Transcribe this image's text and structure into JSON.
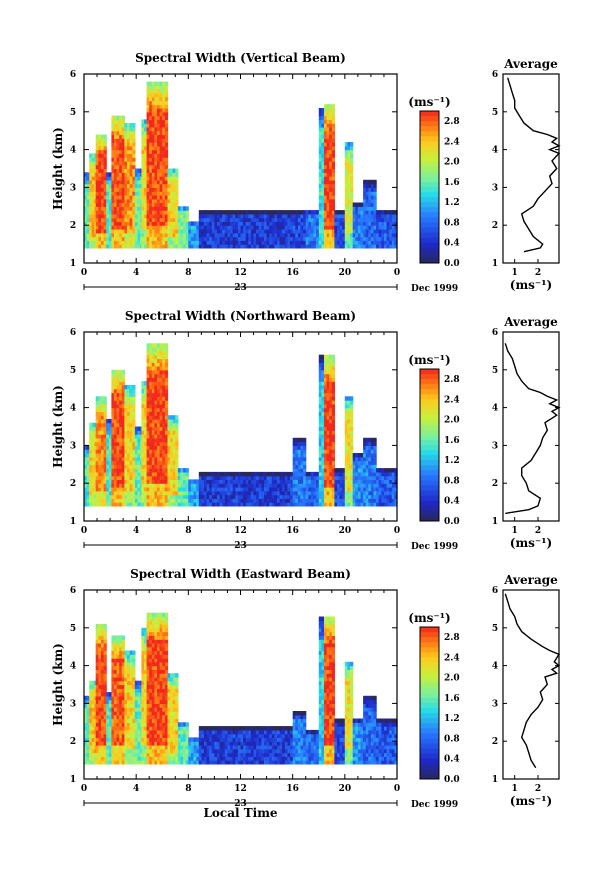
{
  "chart_data": [
    {
      "type": "heatmap",
      "title": "Spectral Width (Vertical Beam)",
      "ylabel": "Height (km)",
      "ylim": [
        1,
        6
      ],
      "yticks": [
        "1",
        "2",
        "3",
        "4",
        "5",
        "6"
      ],
      "xlim": [
        0,
        24
      ],
      "xticks": [
        "0",
        "4",
        "8",
        "12",
        "16",
        "20",
        "0"
      ],
      "day_label": "23",
      "date_label": "Dec 1999",
      "xlabel": "",
      "colorbar": {
        "unit": "(ms⁻¹)",
        "labels": [
          "2.8",
          "2.4",
          "2.0",
          "1.6",
          "1.2",
          "0.8",
          "0.4",
          "0.0"
        ],
        "range": [
          0.0,
          3.0
        ]
      },
      "columns": [
        {
          "t": [
            0.0,
            0.4
          ],
          "h": [
            1.4,
            3.4
          ],
          "v": 1.6
        },
        {
          "t": [
            0.4,
            0.9
          ],
          "h": [
            1.4,
            3.9
          ],
          "v": 2.4
        },
        {
          "t": [
            0.9,
            1.7
          ],
          "h": [
            1.4,
            4.4
          ],
          "v": 2.9
        },
        {
          "t": [
            1.7,
            2.1
          ],
          "h": [
            1.4,
            3.4
          ],
          "v": 1.5
        },
        {
          "t": [
            2.1,
            3.1
          ],
          "h": [
            1.4,
            4.9
          ],
          "v": 2.9
        },
        {
          "t": [
            3.1,
            3.9
          ],
          "h": [
            1.4,
            4.7
          ],
          "v": 2.6
        },
        {
          "t": [
            3.9,
            4.4
          ],
          "h": [
            1.4,
            3.5
          ],
          "v": 1.6
        },
        {
          "t": [
            4.4,
            4.8
          ],
          "h": [
            1.4,
            4.8
          ],
          "v": 2.3
        },
        {
          "t": [
            4.8,
            6.4
          ],
          "h": [
            1.4,
            5.8
          ],
          "v": 2.9
        },
        {
          "t": [
            6.4,
            7.2
          ],
          "h": [
            1.4,
            3.5
          ],
          "v": 2.3
        },
        {
          "t": [
            7.2,
            8.0
          ],
          "h": [
            1.4,
            2.5
          ],
          "v": 1.7
        },
        {
          "t": [
            8.0,
            8.8
          ],
          "h": [
            1.4,
            2.1
          ],
          "v": 1.1
        },
        {
          "t": [
            8.8,
            16.0
          ],
          "h": [
            1.4,
            2.4
          ],
          "v": 0.5
        },
        {
          "t": [
            16.0,
            17.0
          ],
          "h": [
            1.4,
            2.4
          ],
          "v": 0.6
        },
        {
          "t": [
            17.0,
            18.0
          ],
          "h": [
            1.4,
            2.4
          ],
          "v": 0.9
        },
        {
          "t": [
            18.0,
            18.4
          ],
          "h": [
            1.4,
            5.1
          ],
          "v": 1.4
        },
        {
          "t": [
            18.4,
            19.2
          ],
          "h": [
            1.4,
            5.2
          ],
          "v": 2.9
        },
        {
          "t": [
            19.2,
            20.0
          ],
          "h": [
            1.4,
            2.4
          ],
          "v": 0.6
        },
        {
          "t": [
            20.0,
            20.6
          ],
          "h": [
            1.4,
            4.2
          ],
          "v": 2.1
        },
        {
          "t": [
            20.6,
            21.4
          ],
          "h": [
            1.4,
            2.6
          ],
          "v": 0.9
        },
        {
          "t": [
            21.4,
            22.4
          ],
          "h": [
            1.4,
            3.2
          ],
          "v": 0.8
        },
        {
          "t": [
            22.4,
            24.0
          ],
          "h": [
            1.4,
            2.4
          ],
          "v": 0.7
        }
      ],
      "profile": {
        "title": "Average",
        "xlabel": "(ms⁻¹)",
        "xlim": [
          0.5,
          2.9
        ],
        "xticks": [
          "1",
          "2"
        ],
        "ylim": [
          1,
          6
        ],
        "yticks": [
          "1",
          "2",
          "3",
          "4",
          "5",
          "6"
        ],
        "height": [
          1.3,
          1.4,
          1.5,
          1.7,
          1.9,
          2.1,
          2.3,
          2.5,
          2.7,
          2.9,
          3.1,
          3.3,
          3.5,
          3.7,
          3.9,
          4.0,
          4.1,
          4.2,
          4.3,
          4.4,
          4.5,
          4.7,
          4.9,
          5.1,
          5.3,
          5.5,
          5.7,
          5.9
        ],
        "value": [
          1.4,
          2.1,
          2.2,
          1.8,
          1.6,
          1.4,
          1.3,
          1.8,
          2.0,
          2.3,
          2.6,
          2.5,
          2.8,
          2.6,
          2.9,
          2.5,
          2.9,
          2.6,
          2.8,
          2.4,
          1.8,
          1.4,
          1.2,
          1.0,
          1.0,
          0.9,
          0.8,
          0.7
        ]
      }
    },
    {
      "type": "heatmap",
      "title": "Spectral Width (Northward Beam)",
      "ylabel": "Height (km)",
      "ylim": [
        1,
        6
      ],
      "yticks": [
        "1",
        "2",
        "3",
        "4",
        "5",
        "6"
      ],
      "xlim": [
        0,
        24
      ],
      "xticks": [
        "0",
        "4",
        "8",
        "12",
        "16",
        "20",
        "0"
      ],
      "day_label": "23",
      "date_label": "Dec 1999",
      "xlabel": "",
      "colorbar": {
        "unit": "(ms⁻¹)",
        "labels": [
          "2.8",
          "2.4",
          "2.0",
          "1.6",
          "1.2",
          "0.8",
          "0.4",
          "0.0"
        ],
        "range": [
          0.0,
          3.0
        ]
      },
      "columns": [
        {
          "t": [
            0.0,
            0.4
          ],
          "h": [
            1.4,
            3.0
          ],
          "v": 1.5
        },
        {
          "t": [
            0.4,
            0.9
          ],
          "h": [
            1.4,
            3.6
          ],
          "v": 2.3
        },
        {
          "t": [
            0.9,
            1.7
          ],
          "h": [
            1.4,
            4.3
          ],
          "v": 2.6
        },
        {
          "t": [
            1.7,
            2.1
          ],
          "h": [
            1.4,
            3.7
          ],
          "v": 1.5
        },
        {
          "t": [
            2.1,
            3.1
          ],
          "h": [
            1.4,
            5.0
          ],
          "v": 2.9
        },
        {
          "t": [
            3.1,
            3.9
          ],
          "h": [
            1.4,
            4.6
          ],
          "v": 2.3
        },
        {
          "t": [
            3.9,
            4.4
          ],
          "h": [
            1.4,
            3.5
          ],
          "v": 1.6
        },
        {
          "t": [
            4.4,
            4.8
          ],
          "h": [
            1.4,
            4.7
          ],
          "v": 2.3
        },
        {
          "t": [
            4.8,
            6.4
          ],
          "h": [
            1.4,
            5.7
          ],
          "v": 2.9
        },
        {
          "t": [
            6.4,
            7.2
          ],
          "h": [
            1.4,
            3.8
          ],
          "v": 2.3
        },
        {
          "t": [
            7.2,
            8.0
          ],
          "h": [
            1.4,
            2.4
          ],
          "v": 1.6
        },
        {
          "t": [
            8.0,
            8.8
          ],
          "h": [
            1.4,
            2.1
          ],
          "v": 1.1
        },
        {
          "t": [
            8.8,
            16.0
          ],
          "h": [
            1.4,
            2.3
          ],
          "v": 0.5
        },
        {
          "t": [
            16.0,
            17.0
          ],
          "h": [
            1.4,
            3.2
          ],
          "v": 0.9
        },
        {
          "t": [
            17.0,
            18.0
          ],
          "h": [
            1.4,
            2.3
          ],
          "v": 0.8
        },
        {
          "t": [
            18.0,
            18.4
          ],
          "h": [
            1.4,
            5.4
          ],
          "v": 1.3
        },
        {
          "t": [
            18.4,
            19.2
          ],
          "h": [
            1.4,
            5.4
          ],
          "v": 2.9
        },
        {
          "t": [
            19.2,
            20.0
          ],
          "h": [
            1.4,
            2.4
          ],
          "v": 0.6
        },
        {
          "t": [
            20.0,
            20.6
          ],
          "h": [
            1.4,
            4.3
          ],
          "v": 2.2
        },
        {
          "t": [
            20.6,
            21.4
          ],
          "h": [
            1.4,
            2.8
          ],
          "v": 1.0
        },
        {
          "t": [
            21.4,
            22.4
          ],
          "h": [
            1.4,
            3.2
          ],
          "v": 0.9
        },
        {
          "t": [
            22.4,
            24.0
          ],
          "h": [
            1.4,
            2.4
          ],
          "v": 0.7
        }
      ],
      "profile": {
        "title": "Average",
        "xlabel": "(ms⁻¹)",
        "xlim": [
          0.5,
          2.9
        ],
        "xticks": [
          "1",
          "2"
        ],
        "ylim": [
          1,
          6
        ],
        "yticks": [
          "1",
          "2",
          "3",
          "4",
          "5",
          "6"
        ],
        "height": [
          1.2,
          1.3,
          1.4,
          1.6,
          1.8,
          2.0,
          2.2,
          2.4,
          2.6,
          2.8,
          3.0,
          3.2,
          3.4,
          3.6,
          3.8,
          3.9,
          4.0,
          4.1,
          4.2,
          4.3,
          4.4,
          4.5,
          4.7,
          4.9,
          5.1,
          5.3,
          5.5,
          5.7
        ],
        "value": [
          0.6,
          1.6,
          2.0,
          2.1,
          1.6,
          1.5,
          1.3,
          1.3,
          1.7,
          1.9,
          2.1,
          2.2,
          2.4,
          2.3,
          2.8,
          2.6,
          2.9,
          2.5,
          2.8,
          2.4,
          2.1,
          1.6,
          1.3,
          1.1,
          1.0,
          0.9,
          0.7,
          0.6
        ]
      }
    },
    {
      "type": "heatmap",
      "title": "Spectral Width (Eastward Beam)",
      "ylabel": "Height (km)",
      "ylim": [
        1,
        6
      ],
      "yticks": [
        "1",
        "2",
        "3",
        "4",
        "5",
        "6"
      ],
      "xlim": [
        0,
        24
      ],
      "xticks": [
        "0",
        "4",
        "8",
        "12",
        "16",
        "20",
        "0"
      ],
      "day_label": "23",
      "date_label": "Dec 1999",
      "xlabel": "Local Time",
      "colorbar": {
        "unit": "(ms⁻¹)",
        "labels": [
          "2.8",
          "2.4",
          "2.0",
          "1.6",
          "1.2",
          "0.8",
          "0.4",
          "0.0"
        ],
        "range": [
          0.0,
          3.0
        ]
      },
      "columns": [
        {
          "t": [
            0.0,
            0.4
          ],
          "h": [
            1.4,
            3.2
          ],
          "v": 1.6
        },
        {
          "t": [
            0.4,
            0.9
          ],
          "h": [
            1.4,
            3.6
          ],
          "v": 2.4
        },
        {
          "t": [
            0.9,
            1.7
          ],
          "h": [
            1.4,
            5.1
          ],
          "v": 2.9
        },
        {
          "t": [
            1.7,
            2.1
          ],
          "h": [
            1.4,
            3.3
          ],
          "v": 1.5
        },
        {
          "t": [
            2.1,
            3.1
          ],
          "h": [
            1.4,
            4.8
          ],
          "v": 2.8
        },
        {
          "t": [
            3.1,
            3.9
          ],
          "h": [
            1.4,
            4.4
          ],
          "v": 2.3
        },
        {
          "t": [
            3.9,
            4.4
          ],
          "h": [
            1.4,
            3.6
          ],
          "v": 1.6
        },
        {
          "t": [
            4.4,
            4.8
          ],
          "h": [
            1.4,
            5.0
          ],
          "v": 2.3
        },
        {
          "t": [
            4.8,
            6.4
          ],
          "h": [
            1.4,
            5.4
          ],
          "v": 2.9
        },
        {
          "t": [
            6.4,
            7.2
          ],
          "h": [
            1.4,
            3.8
          ],
          "v": 2.3
        },
        {
          "t": [
            7.2,
            8.0
          ],
          "h": [
            1.4,
            2.5
          ],
          "v": 1.6
        },
        {
          "t": [
            8.0,
            8.8
          ],
          "h": [
            1.4,
            2.1
          ],
          "v": 1.1
        },
        {
          "t": [
            8.8,
            16.0
          ],
          "h": [
            1.4,
            2.4
          ],
          "v": 0.5
        },
        {
          "t": [
            16.0,
            17.0
          ],
          "h": [
            1.4,
            2.8
          ],
          "v": 0.9
        },
        {
          "t": [
            17.0,
            18.0
          ],
          "h": [
            1.4,
            2.3
          ],
          "v": 0.8
        },
        {
          "t": [
            18.0,
            18.4
          ],
          "h": [
            1.4,
            5.3
          ],
          "v": 1.3
        },
        {
          "t": [
            18.4,
            19.2
          ],
          "h": [
            1.4,
            5.3
          ],
          "v": 2.9
        },
        {
          "t": [
            19.2,
            20.0
          ],
          "h": [
            1.4,
            2.6
          ],
          "v": 0.6
        },
        {
          "t": [
            20.0,
            20.6
          ],
          "h": [
            1.4,
            4.1
          ],
          "v": 2.2
        },
        {
          "t": [
            20.6,
            21.4
          ],
          "h": [
            1.4,
            2.6
          ],
          "v": 1.0
        },
        {
          "t": [
            21.4,
            22.4
          ],
          "h": [
            1.4,
            3.2
          ],
          "v": 0.8
        },
        {
          "t": [
            22.4,
            24.0
          ],
          "h": [
            1.4,
            2.6
          ],
          "v": 0.7
        }
      ],
      "profile": {
        "title": "Average",
        "xlabel": "(ms⁻¹)",
        "xlim": [
          0.5,
          2.9
        ],
        "xticks": [
          "1",
          "2"
        ],
        "ylim": [
          1,
          6
        ],
        "yticks": [
          "1",
          "2",
          "3",
          "4",
          "5",
          "6"
        ],
        "height": [
          1.3,
          1.5,
          1.7,
          1.9,
          2.1,
          2.3,
          2.5,
          2.7,
          2.9,
          3.1,
          3.3,
          3.5,
          3.7,
          3.8,
          3.9,
          4.0,
          4.1,
          4.2,
          4.3,
          4.4,
          4.5,
          4.7,
          4.9,
          5.1,
          5.3,
          5.5,
          5.7,
          5.9
        ],
        "value": [
          1.9,
          1.7,
          1.6,
          1.5,
          1.3,
          1.4,
          1.5,
          1.7,
          2.0,
          2.2,
          2.1,
          2.4,
          2.3,
          2.8,
          2.6,
          2.9,
          2.7,
          2.8,
          2.9,
          2.5,
          2.2,
          1.7,
          1.3,
          1.1,
          1.0,
          0.8,
          0.7,
          0.6
        ]
      }
    }
  ]
}
